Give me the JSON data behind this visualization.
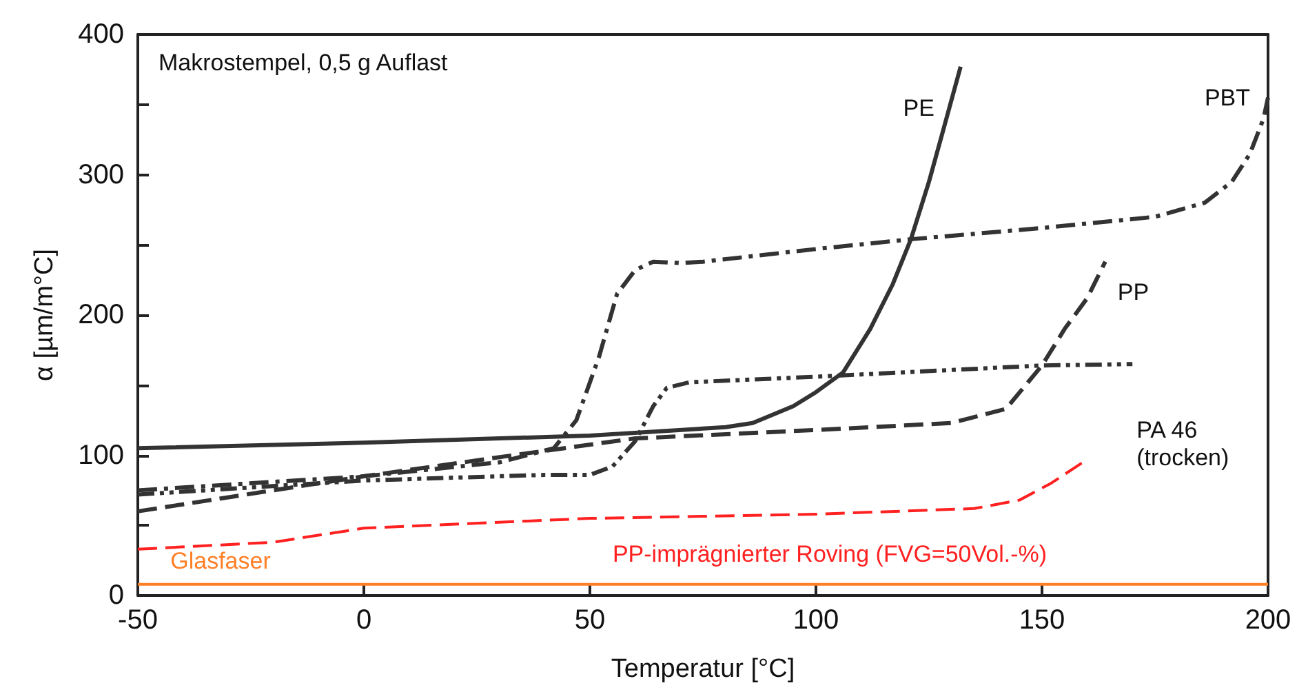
{
  "chart_data": {
    "type": "line",
    "title": "Makrostempel, 0,5 g Auflast",
    "xlabel": "Temperatur [°C]",
    "ylabel": "α [µm/m°C]",
    "xlim": [
      -50,
      200
    ],
    "xticks": [
      -50,
      0,
      50,
      100,
      150,
      200
    ],
    "ylim": [
      0,
      400
    ],
    "yticks": [
      0,
      {
        "value": 50,
        "label": null
      },
      100,
      {
        "value": 150,
        "label": null
      },
      200,
      {
        "value": 250,
        "label": null
      },
      300,
      {
        "value": 350,
        "label": null
      },
      400
    ],
    "grid": false,
    "legend": false,
    "marker": "none",
    "series": [
      {
        "name": "PE",
        "color": "#333333",
        "line_style": "solid",
        "x": [
          -50,
          0,
          50,
          80,
          86,
          95,
          100,
          106,
          112,
          117,
          121,
          125,
          128,
          132
        ],
        "values": [
          105,
          109,
          114,
          120,
          123,
          135,
          145,
          159,
          190,
          222,
          254,
          295,
          330,
          377
        ]
      },
      {
        "name": "PBT",
        "color": "#333333",
        "line_style": "dashdot",
        "x": [
          -50,
          0,
          30,
          42,
          47,
          52,
          56,
          60,
          64,
          70,
          75,
          100,
          121,
          150,
          175,
          186,
          192,
          196,
          199,
          200
        ],
        "values": [
          75,
          85,
          95,
          105,
          125,
          170,
          215,
          232,
          238,
          237,
          238,
          247,
          254,
          262,
          270,
          280,
          295,
          315,
          340,
          355
        ]
      },
      {
        "name": "PP",
        "color": "#333333",
        "line_style": "dashed",
        "x": [
          -50,
          0,
          33,
          60,
          100,
          130,
          142,
          150,
          155,
          160,
          164
        ],
        "values": [
          60,
          85,
          100,
          112,
          118,
          123,
          133,
          164,
          190,
          212,
          238
        ]
      },
      {
        "name": "PA 46\n(trocken)",
        "color": "#333333",
        "line_style": "dashdotdot",
        "x": [
          -50,
          0,
          40,
          50,
          55,
          60,
          64,
          67,
          72,
          100,
          150,
          170
        ],
        "values": [
          72,
          82,
          86,
          86,
          92,
          110,
          135,
          148,
          152,
          156,
          164,
          165
        ]
      },
      {
        "name": "PP-imprägnierter Roving (FVG=50Vol.-%)",
        "color": "#ff2020",
        "line_style": "dashed",
        "x": [
          -50,
          -20,
          0,
          50,
          100,
          135,
          145,
          152,
          160
        ],
        "values": [
          33,
          38,
          48,
          55,
          58,
          62,
          68,
          80,
          97
        ]
      },
      {
        "name": "Glasfaser",
        "color": "#ff7f27",
        "line_style": "solid",
        "x": [
          -50,
          200
        ],
        "values": [
          8,
          8
        ]
      }
    ]
  }
}
